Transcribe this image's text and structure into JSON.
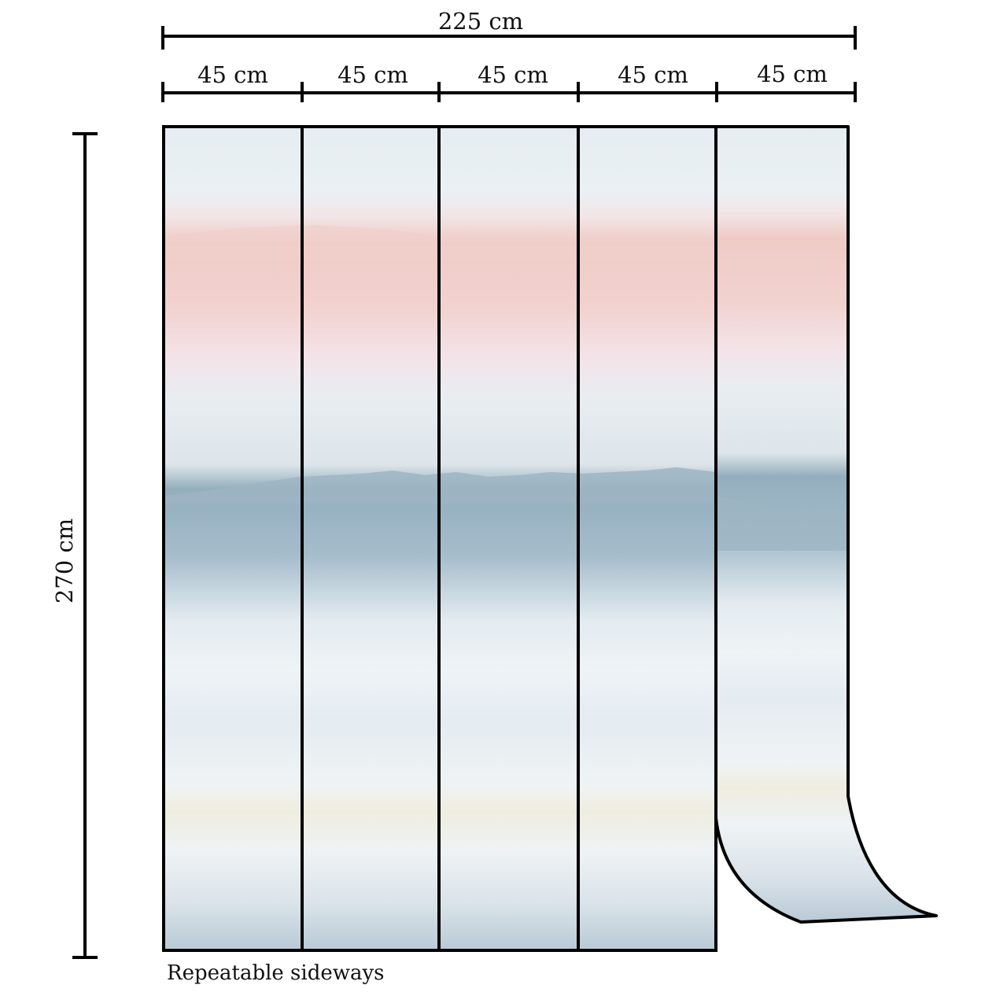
{
  "dimensions": {
    "total_width_label": "225 cm",
    "height_label": "270 cm",
    "panel_width_labels": [
      "45 cm",
      "45 cm",
      "45 cm",
      "45 cm",
      "45 cm"
    ]
  },
  "note": "Repeatable sideways",
  "colors": {
    "outline": "#000000",
    "paper": "#eef2f5",
    "blush": "#f3cdcb",
    "slate": "#8ea9b8",
    "cream": "#ece8d6"
  }
}
